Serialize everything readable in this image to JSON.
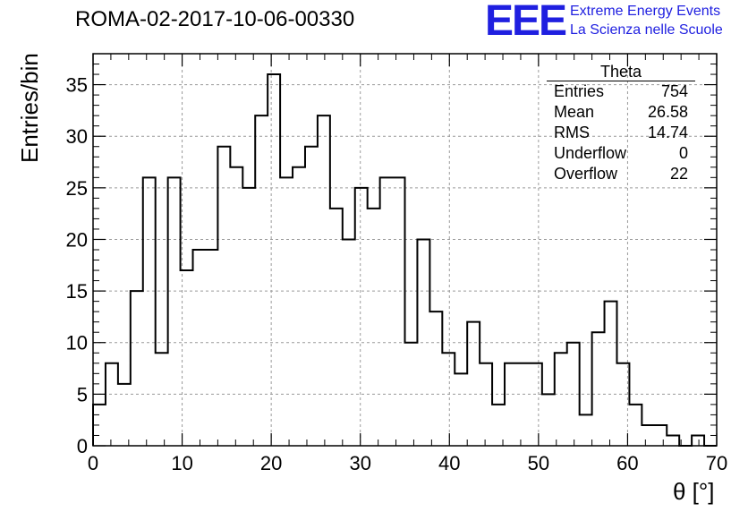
{
  "header": {
    "run_title": "ROMA-02-2017-10-06-00330",
    "logo_text": "EEE",
    "logo_line1": "Extreme Energy Events",
    "logo_line2": "La Scienza nelle Scuole",
    "logo_color": "#1f1fe0"
  },
  "stats": {
    "title": "Theta",
    "rows": [
      {
        "label": "Entries",
        "value": "754"
      },
      {
        "label": "Mean",
        "value": "26.58"
      },
      {
        "label": "RMS",
        "value": "14.74"
      },
      {
        "label": "Underflow",
        "value": "0"
      },
      {
        "label": "Overflow",
        "value": "22"
      }
    ]
  },
  "chart_data": {
    "type": "bar",
    "style": "step-histogram",
    "title": "ROMA-02-2017-10-06-00330",
    "xlabel": "θ [°]",
    "ylabel": "Entries/bin",
    "xlim": [
      0,
      70
    ],
    "ylim": [
      0,
      38
    ],
    "bin_width": 1.4,
    "bin_edges_start": 0,
    "values": [
      4,
      8,
      6,
      15,
      26,
      9,
      26,
      17,
      19,
      19,
      29,
      27,
      25,
      32,
      36,
      26,
      27,
      29,
      32,
      23,
      20,
      25,
      23,
      26,
      26,
      10,
      20,
      13,
      9,
      7,
      12,
      8,
      4,
      8,
      8,
      8,
      5,
      9,
      10,
      3,
      11,
      14,
      8,
      4,
      2,
      2,
      1,
      0,
      1,
      0
    ],
    "x_ticks": [
      0,
      10,
      20,
      30,
      40,
      50,
      60,
      70
    ],
    "y_ticks": [
      0,
      5,
      10,
      15,
      20,
      25,
      30,
      35
    ],
    "grid": true,
    "line_color": "#000000"
  }
}
